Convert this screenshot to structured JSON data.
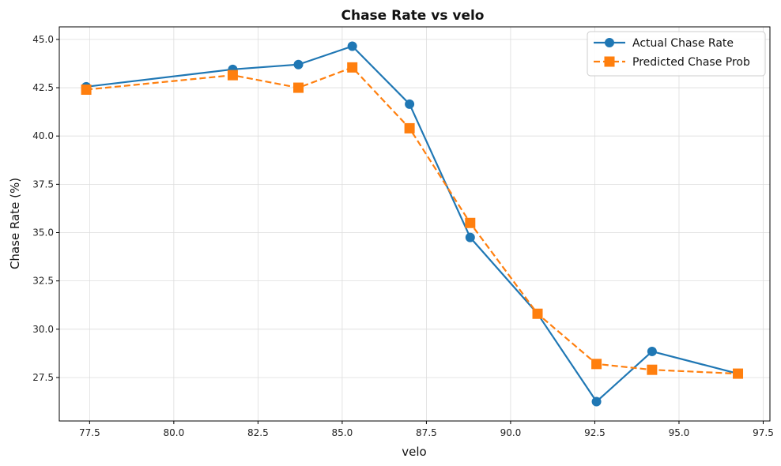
{
  "chart_data": {
    "type": "line",
    "title": "Chase Rate vs velo",
    "xlabel": "velo",
    "ylabel": "Chase Rate (%)",
    "xlim": [
      76.6,
      97.7
    ],
    "ylim": [
      25.25,
      45.65
    ],
    "xticks": [
      77.5,
      80.0,
      82.5,
      85.0,
      87.5,
      90.0,
      92.5,
      95.0,
      97.5
    ],
    "xtick_labels": [
      "77.5",
      "80.0",
      "82.5",
      "85.0",
      "87.5",
      "90.0",
      "92.5",
      "95.0",
      "97.5"
    ],
    "yticks": [
      27.5,
      30.0,
      32.5,
      35.0,
      37.5,
      40.0,
      42.5,
      45.0
    ],
    "ytick_labels": [
      "27.5",
      "30.0",
      "32.5",
      "35.0",
      "37.5",
      "40.0",
      "42.5",
      "45.0"
    ],
    "grid": true,
    "legend_position": "top-right",
    "x": [
      77.4,
      81.75,
      83.7,
      85.3,
      87.0,
      88.8,
      90.8,
      92.55,
      94.2,
      96.75
    ],
    "series": [
      {
        "name": "Actual Chase Rate",
        "color": "#1f77b4",
        "marker": "circle",
        "line_style": "solid",
        "values": [
          42.55,
          43.45,
          43.7,
          44.65,
          41.65,
          34.75,
          30.8,
          26.25,
          28.85,
          27.7
        ]
      },
      {
        "name": "Predicted Chase Prob",
        "color": "#ff7f0e",
        "marker": "square",
        "line_style": "dashed",
        "values": [
          42.4,
          43.15,
          42.5,
          43.55,
          40.4,
          35.5,
          30.8,
          28.2,
          27.9,
          27.7
        ]
      }
    ]
  }
}
